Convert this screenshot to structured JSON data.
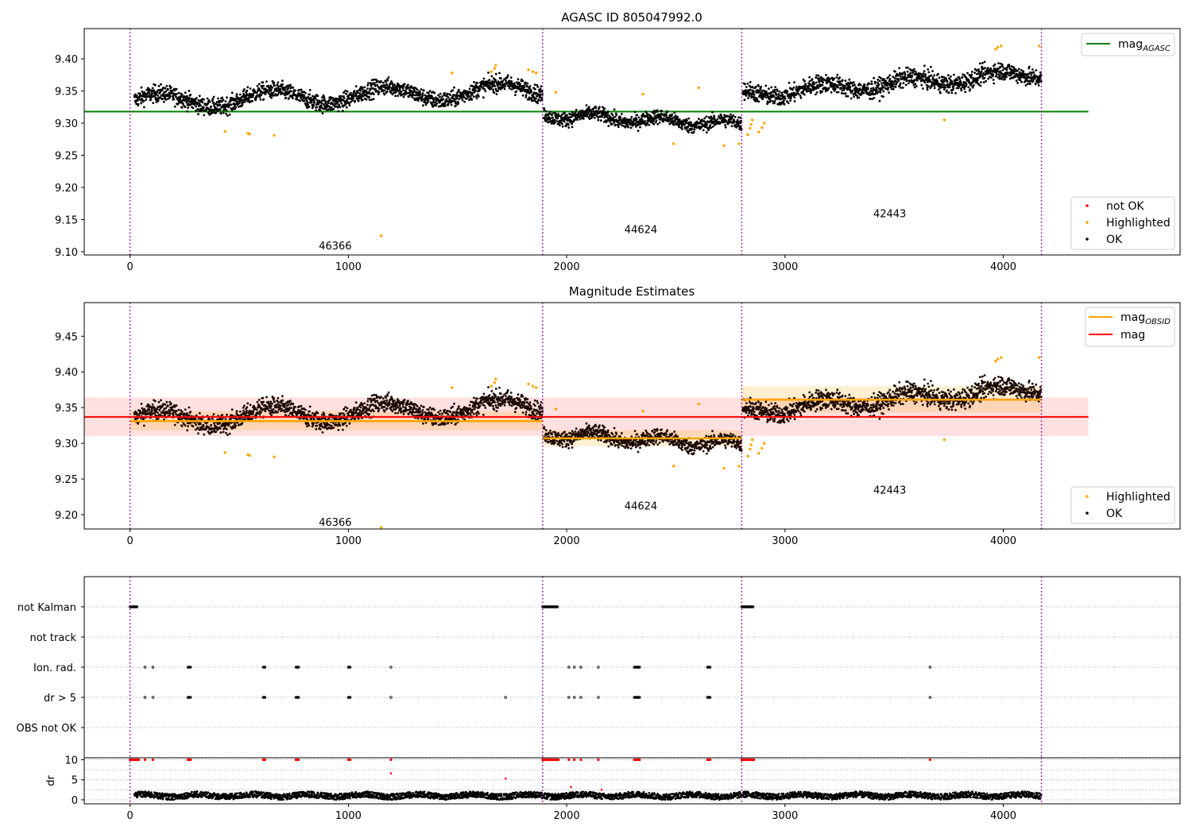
{
  "chart_data": [
    {
      "type": "scatter",
      "title": "AGASC ID 805047992.0",
      "xlim": [
        -210,
        4810
      ],
      "ylim": [
        9.095,
        9.447
      ],
      "xticks": [
        0,
        1000,
        2000,
        3000,
        4000
      ],
      "yticks": [
        "9.10",
        "9.15",
        "9.20",
        "9.25",
        "9.30",
        "9.35",
        "9.40"
      ],
      "grid": false,
      "obsid_boundaries": [
        0,
        1890,
        2802,
        4175
      ],
      "obsid_labels": [
        {
          "text": "46366",
          "x": 940,
          "y": 9.11
        },
        {
          "text": "44624",
          "x": 2340,
          "y": 9.135
        },
        {
          "text": "42443",
          "x": 3480,
          "y": 9.16
        }
      ],
      "reference_lines": [
        {
          "name": "mag",
          "subscript": "AGASC",
          "y": 9.318,
          "x": [
            -210,
            4390
          ],
          "color": "#008000"
        }
      ],
      "segments": [
        {
          "x0": 20,
          "x1": 1890,
          "start": 9.333,
          "end": 9.352,
          "spread": 0.013,
          "wave_amp": 0.012,
          "wave_period": 520
        },
        {
          "x0": 1895,
          "x1": 2802,
          "start": 9.313,
          "end": 9.298,
          "spread": 0.011,
          "wave_amp": 0.006,
          "wave_period": 300
        },
        {
          "x0": 2807,
          "x1": 4175,
          "start": 9.345,
          "end": 9.378,
          "spread": 0.014,
          "wave_amp": 0.008,
          "wave_period": 400
        }
      ],
      "highlighted_points": [
        [
          435,
          9.287
        ],
        [
          540,
          9.284
        ],
        [
          548,
          9.283
        ],
        [
          660,
          9.281
        ],
        [
          1150,
          9.125
        ],
        [
          1475,
          9.378
        ],
        [
          1655,
          9.38
        ],
        [
          1670,
          9.385
        ],
        [
          1675,
          9.39
        ],
        [
          1825,
          9.383
        ],
        [
          1845,
          9.38
        ],
        [
          1860,
          9.378
        ],
        [
          1950,
          9.348
        ],
        [
          2350,
          9.345
        ],
        [
          2490,
          9.268
        ],
        [
          2605,
          9.355
        ],
        [
          2720,
          9.265
        ],
        [
          2790,
          9.268
        ],
        [
          2830,
          9.282
        ],
        [
          2840,
          9.292
        ],
        [
          2845,
          9.298
        ],
        [
          2850,
          9.305
        ],
        [
          2880,
          9.286
        ],
        [
          2895,
          9.293
        ],
        [
          2905,
          9.3
        ],
        [
          3730,
          9.305
        ],
        [
          3965,
          9.415
        ],
        [
          3975,
          9.418
        ],
        [
          3990,
          9.42
        ],
        [
          4165,
          9.42
        ]
      ],
      "legends": [
        {
          "position": "upper-right",
          "entries": [
            {
              "label": "mag",
              "subscript": "AGASC",
              "kind": "line",
              "color": "#008000"
            }
          ]
        },
        {
          "position": "lower-right",
          "entries": [
            {
              "label": "not OK",
              "kind": "marker",
              "color": "#ff0000"
            },
            {
              "label": "Highlighted",
              "kind": "marker",
              "color": "#ffa500"
            },
            {
              "label": "OK",
              "kind": "marker",
              "color": "#000000"
            }
          ]
        }
      ]
    },
    {
      "type": "scatter",
      "title": "Magnitude Estimates",
      "xlim": [
        -210,
        4810
      ],
      "ylim": [
        9.18,
        9.497
      ],
      "xticks": [
        0,
        1000,
        2000,
        3000,
        4000
      ],
      "yticks": [
        "9.20",
        "9.25",
        "9.30",
        "9.35",
        "9.40",
        "9.45"
      ],
      "grid": false,
      "obsid_boundaries": [
        0,
        1890,
        2802,
        4175
      ],
      "obsid_labels": [
        {
          "text": "46366",
          "x": 940,
          "y": 9.19
        },
        {
          "text": "44624",
          "x": 2340,
          "y": 9.213
        },
        {
          "text": "42443",
          "x": 3480,
          "y": 9.235
        }
      ],
      "mag_overall": {
        "name": "mag",
        "y": 9.337,
        "band": [
          9.31,
          9.364
        ],
        "x": [
          -210,
          4390
        ],
        "color": "#ff0000"
      },
      "mag_obsid": [
        {
          "x": [
            0,
            1890
          ],
          "y": 9.331,
          "band": [
            9.318,
            9.345
          ]
        },
        {
          "x": [
            1890,
            2802
          ],
          "y": 9.307,
          "band": [
            9.296,
            9.318
          ]
        },
        {
          "x": [
            2802,
            4175
          ],
          "y": 9.361,
          "band": [
            9.343,
            9.38
          ]
        }
      ],
      "legends": [
        {
          "position": "upper-right",
          "entries": [
            {
              "label": "mag",
              "subscript": "OBSID",
              "kind": "line",
              "color": "#ffa500"
            },
            {
              "label": "mag",
              "kind": "line",
              "color": "#ff0000"
            }
          ]
        },
        {
          "position": "lower-right",
          "entries": [
            {
              "label": "Highlighted",
              "kind": "marker",
              "color": "#ffa500"
            },
            {
              "label": "OK",
              "kind": "marker",
              "color": "#000000"
            }
          ]
        }
      ]
    },
    {
      "type": "scatter",
      "title": "",
      "categories": [
        "not Kalman",
        "not track",
        "Ion. rad.",
        "dr > 5",
        "OBS not OK"
      ],
      "grid": true,
      "events": {
        "not Kalman": [
          [
            0,
            35
          ],
          [
            1890,
            1960
          ],
          [
            2802,
            2857
          ]
        ],
        "not track": [],
        "Ion. rad.": [
          [
            68,
            68
          ],
          [
            105,
            105
          ],
          [
            265,
            280
          ],
          [
            610,
            620
          ],
          [
            760,
            775
          ],
          [
            1000,
            1010
          ],
          [
            1195,
            1195
          ],
          [
            2010,
            2010
          ],
          [
            2035,
            2035
          ],
          [
            2065,
            2065
          ],
          [
            2145,
            2145
          ],
          [
            2310,
            2335
          ],
          [
            2645,
            2660
          ],
          [
            3665,
            3665
          ]
        ],
        "dr > 5": [
          [
            68,
            68
          ],
          [
            105,
            105
          ],
          [
            265,
            280
          ],
          [
            610,
            620
          ],
          [
            760,
            775
          ],
          [
            1000,
            1010
          ],
          [
            1195,
            1195
          ],
          [
            1720,
            1720
          ],
          [
            2010,
            2010
          ],
          [
            2035,
            2035
          ],
          [
            2065,
            2065
          ],
          [
            2145,
            2145
          ],
          [
            2310,
            2335
          ],
          [
            2645,
            2660
          ],
          [
            3665,
            3665
          ]
        ],
        "OBS not OK": []
      }
    },
    {
      "type": "scatter",
      "ylabel": "dr",
      "xlim": [
        -210,
        4810
      ],
      "ylim": [
        -1,
        10.5
      ],
      "xticks": [
        0,
        1000,
        2000,
        3000,
        4000
      ],
      "yticks": [
        0,
        5,
        10
      ],
      "grid": true,
      "capped_points_at_10": [
        [
          0,
          40
        ],
        [
          1890,
          1965
        ],
        [
          2802,
          2860
        ],
        [
          68,
          68
        ],
        [
          105,
          105
        ],
        [
          265,
          280
        ],
        [
          610,
          620
        ],
        [
          760,
          775
        ],
        [
          1000,
          1010
        ],
        [
          2010,
          2010
        ],
        [
          2035,
          2035
        ],
        [
          2065,
          2065
        ],
        [
          2145,
          2145
        ],
        [
          2310,
          2335
        ],
        [
          2645,
          2660
        ],
        [
          3665,
          3665
        ],
        [
          1195,
          1195
        ]
      ],
      "outlier_points": [
        [
          1195,
          6.6
        ],
        [
          1720,
          5.3
        ],
        [
          2020,
          3.2
        ],
        [
          2160,
          2.5
        ]
      ],
      "baseline_band": [
        0.3,
        1.8
      ]
    }
  ]
}
